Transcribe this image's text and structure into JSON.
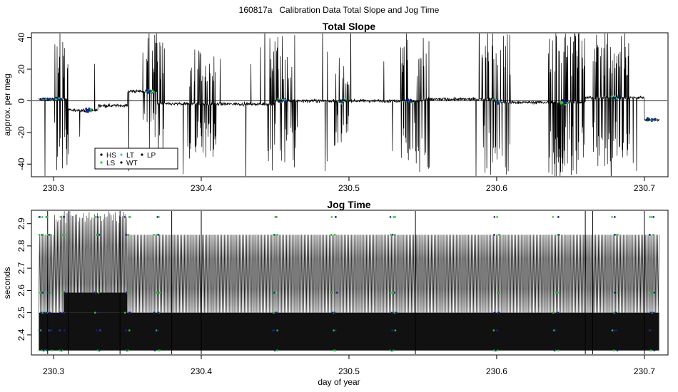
{
  "page_title": "160817a   Calibration Data Total Slope and Jog Time",
  "colors": {
    "HS": "#000000",
    "LS": "#22cc22",
    "LT": "#33cccc",
    "WT": "#000000",
    "LP": "#000000",
    "blue": "#1a1aa6"
  },
  "chart_data": [
    {
      "type": "line",
      "title": "Total Slope",
      "xlabel": "",
      "ylabel": "approx. per meg",
      "xlim": [
        230.285,
        230.716
      ],
      "ylim": [
        -48,
        43
      ],
      "x_ticks": [
        "230.3",
        "230.4",
        "230.5",
        "230.6",
        "230.7"
      ],
      "y_ticks": [
        "-40",
        "-20",
        "0",
        "20",
        "40"
      ],
      "reference_line_y": 0,
      "legend": {
        "placement": "bottom-left",
        "entries": [
          "HS",
          "LT",
          "LP",
          "LS",
          "WT"
        ]
      },
      "x_range": [
        230.29,
        230.71
      ],
      "baseline_segments": [
        {
          "x": [
            230.29,
            230.31
          ],
          "level": 1
        },
        {
          "x": [
            230.31,
            230.33
          ],
          "level": -6
        },
        {
          "x": [
            230.33,
            230.35
          ],
          "level": -3
        },
        {
          "x": [
            230.35,
            230.37
          ],
          "level": 6
        },
        {
          "x": [
            230.37,
            230.45
          ],
          "level": -2
        },
        {
          "x": [
            230.45,
            230.55
          ],
          "level": 0
        },
        {
          "x": [
            230.55,
            230.6
          ],
          "level": 1
        },
        {
          "x": [
            230.6,
            230.66
          ],
          "level": -1
        },
        {
          "x": [
            230.66,
            230.7
          ],
          "level": 2
        },
        {
          "x": [
            230.7,
            230.71
          ],
          "level": -12
        }
      ],
      "spike_bursts": [
        {
          "x": [
            230.3,
            230.31
          ],
          "amplitude": 45
        },
        {
          "x": [
            230.36,
            230.375
          ],
          "amplitude": 40
        },
        {
          "x": [
            230.39,
            230.41
          ],
          "amplitude": 35
        },
        {
          "x": [
            230.445,
            230.465
          ],
          "amplitude": 45
        },
        {
          "x": [
            230.49,
            230.5
          ],
          "amplitude": 30
        },
        {
          "x": [
            230.535,
            230.555
          ],
          "amplitude": 45
        },
        {
          "x": [
            230.59,
            230.61
          ],
          "amplitude": 50
        },
        {
          "x": [
            230.635,
            230.66
          ],
          "amplitude": 50
        },
        {
          "x": [
            230.665,
            230.69
          ],
          "amplitude": 45
        }
      ]
    },
    {
      "type": "line",
      "title": "Jog Time",
      "xlabel": "day of year",
      "ylabel": "seconds",
      "xlim": [
        230.285,
        230.716
      ],
      "ylim": [
        2.31,
        2.96
      ],
      "x_ticks": [
        "230.3",
        "230.4",
        "230.5",
        "230.6",
        "230.7"
      ],
      "y_ticks": [
        "2.4",
        "2.5",
        "2.6",
        "2.7",
        "2.8",
        "2.9"
      ],
      "levels": [
        2.33,
        2.42,
        2.5,
        2.59,
        2.85,
        2.93
      ],
      "band_main": [
        2.33,
        2.5
      ],
      "band_upper": [
        2.5,
        2.85
      ],
      "x_range": [
        230.29,
        230.71
      ]
    }
  ]
}
